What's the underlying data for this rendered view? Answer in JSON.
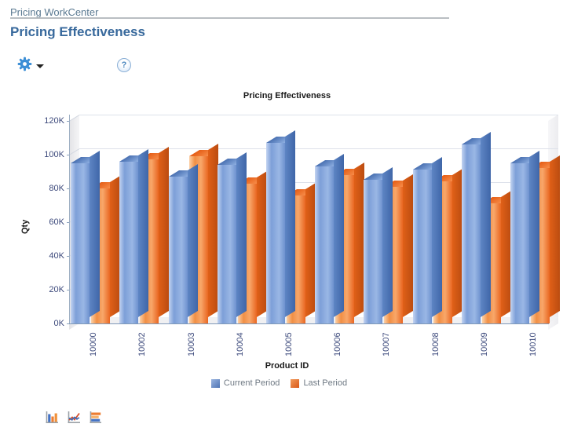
{
  "header": {
    "breadcrumb": "Pricing WorkCenter",
    "page_title": "Pricing Effectiveness"
  },
  "toolbar": {
    "gear_icon": "gear-icon",
    "help_icon_glyph": "?"
  },
  "chart_data": {
    "type": "bar",
    "style": "3d-column",
    "title": "Pricing Effectiveness",
    "xlabel": "Product ID",
    "ylabel": "Qty",
    "categories": [
      "10000",
      "10002",
      "10003",
      "10004",
      "10005",
      "10006",
      "10007",
      "10008",
      "10009",
      "10010"
    ],
    "series": [
      {
        "name": "Current Period",
        "color": "#7fa0d8",
        "values": [
          95000,
          96000,
          87000,
          94000,
          107000,
          93000,
          85000,
          91000,
          106000,
          95000
        ]
      },
      {
        "name": "Last Period",
        "color": "#ee6b23",
        "values": [
          80000,
          97000,
          99000,
          83000,
          76000,
          88000,
          81000,
          84000,
          71000,
          92000
        ]
      }
    ],
    "ylim": [
      0,
      120000
    ],
    "ytick_step": 20000,
    "ytick_labels": [
      "0K",
      "20K",
      "40K",
      "60K",
      "80K",
      "100K",
      "120K"
    ],
    "grid": true,
    "legend_position": "bottom"
  },
  "switcher": {
    "icons": [
      {
        "name": "column-chart-icon"
      },
      {
        "name": "line-chart-icon"
      },
      {
        "name": "horizontal-bar-chart-icon"
      }
    ]
  },
  "colors": {
    "breadcrumb_text": "#5b7a92",
    "page_title_text": "#38699c",
    "axis_label_text": "#3d4a7c",
    "legend_text": "#6e7883",
    "current_period": "#7fa0d8",
    "last_period": "#ee6b23",
    "gear_blue": "#3d8fd6"
  }
}
